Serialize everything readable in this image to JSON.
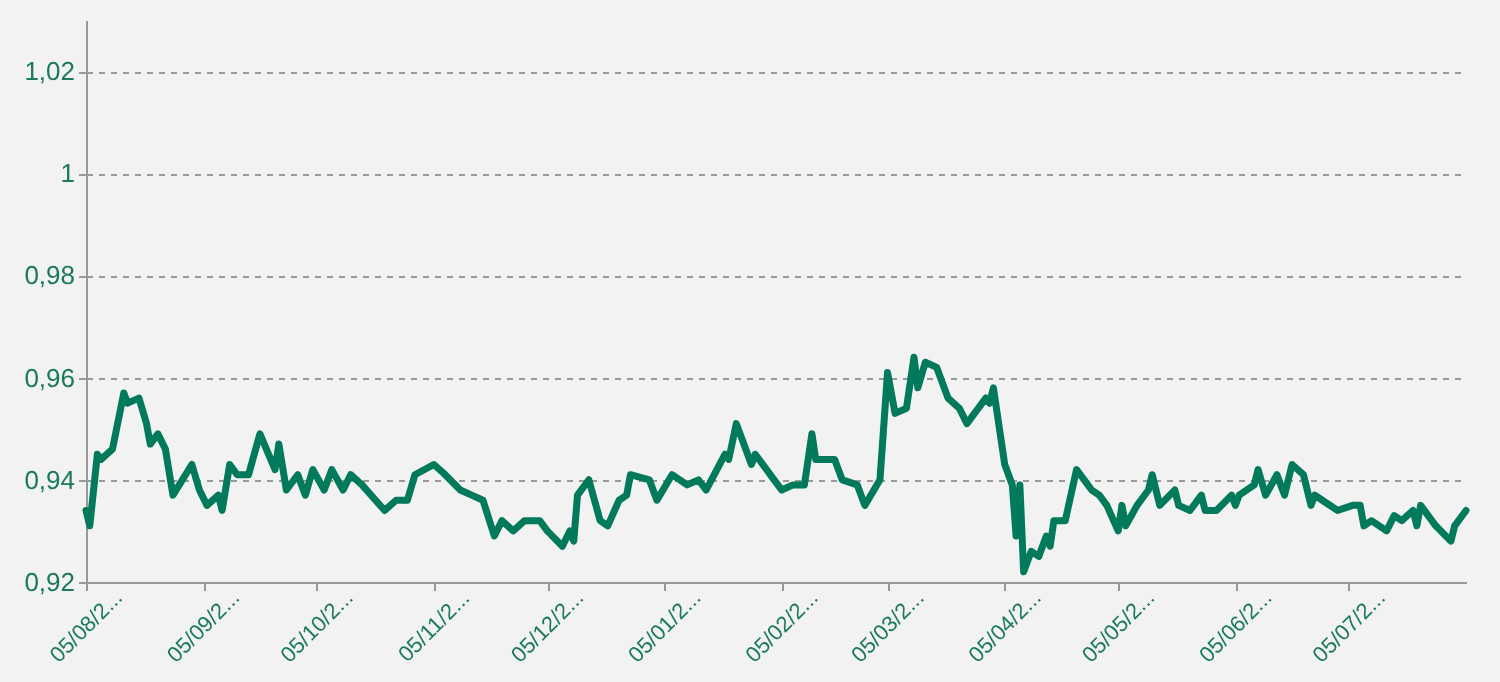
{
  "chart_data": {
    "type": "line",
    "categories": [
      "05/08/2...",
      null,
      null,
      null,
      null,
      null,
      null,
      null,
      null,
      null,
      null,
      null,
      null,
      null,
      null,
      null,
      null,
      null,
      null,
      null,
      null,
      null,
      null,
      null,
      null,
      null,
      null,
      null,
      null,
      null,
      null,
      "05/09/2...",
      null,
      null,
      null,
      null,
      null,
      null,
      null,
      null,
      null,
      null,
      null,
      null,
      null,
      null,
      null,
      null,
      null,
      null,
      null,
      null,
      null,
      null,
      null,
      null,
      null,
      null,
      null,
      null,
      null,
      "05/10/2...",
      null,
      null,
      null,
      null,
      null,
      null,
      null,
      null,
      null,
      null,
      null,
      null,
      null,
      null,
      null,
      null,
      null,
      null,
      null,
      null,
      null,
      null,
      null,
      null,
      null,
      null,
      null,
      null,
      null,
      null,
      "05/11/2...",
      null,
      null,
      null,
      null,
      null,
      null,
      null,
      null,
      null,
      null,
      null,
      null,
      null,
      null,
      null,
      null,
      null,
      null,
      null,
      null,
      null,
      null,
      null,
      null,
      null,
      null,
      null,
      null,
      null,
      "05/12/2...",
      null,
      null,
      null,
      null,
      null,
      null,
      null,
      null,
      null,
      null,
      null,
      null,
      null,
      null,
      null,
      null,
      null,
      null,
      null,
      null,
      null,
      null,
      null,
      null,
      null,
      null,
      null,
      null,
      null,
      null,
      "05/01/2...",
      null,
      null,
      null,
      null,
      null,
      null,
      null,
      null,
      null,
      null,
      null,
      null,
      null,
      null,
      null,
      null,
      null,
      null,
      null,
      null,
      null,
      null,
      null,
      null,
      null,
      null,
      null,
      null,
      null,
      null,
      "05/02/2...",
      null,
      null,
      null,
      null,
      null,
      null,
      null,
      null,
      null,
      null,
      null,
      null,
      null,
      null,
      null,
      null,
      null,
      null,
      null,
      null,
      null,
      null,
      null,
      null,
      null,
      null,
      null,
      "05/03/2...",
      null,
      null,
      null,
      null,
      null,
      null,
      null,
      null,
      null,
      null,
      null,
      null,
      null,
      null,
      null,
      null,
      null,
      null,
      null,
      null,
      null,
      null,
      null,
      null,
      null,
      null,
      null,
      null,
      null,
      null,
      "05/04/2...",
      null,
      null,
      null,
      null,
      null,
      null,
      null,
      null,
      null,
      null,
      null,
      null,
      null,
      null,
      null,
      null,
      null,
      null,
      null,
      null,
      null,
      null,
      null,
      null,
      null,
      null,
      null,
      null,
      null,
      "05/05/2...",
      null,
      null,
      null,
      null,
      null,
      null,
      null,
      null,
      null,
      null,
      null,
      null,
      null,
      null,
      null,
      null,
      null,
      null,
      null,
      null,
      null,
      null,
      null,
      null,
      null,
      null,
      null,
      null,
      null,
      null,
      "05/06/2...",
      null,
      null,
      null,
      null,
      null,
      null,
      null,
      null,
      null,
      null,
      null,
      null,
      null,
      null,
      null,
      null,
      null,
      null,
      null,
      null,
      null,
      null,
      null,
      null,
      null,
      null,
      null,
      null,
      null,
      "05/07/2...",
      null,
      null,
      null,
      null,
      null,
      null,
      null,
      null,
      null,
      null,
      null,
      null,
      null,
      null,
      null,
      null,
      null,
      null,
      null,
      null,
      null,
      null,
      null,
      null,
      null,
      null,
      null,
      null,
      null,
      null,
      null
    ],
    "series": [
      {
        "color": "#007a5a",
        "values": [
          0.934,
          0.931,
          null,
          0.945,
          0.944,
          null,
          null,
          0.946,
          null,
          null,
          0.957,
          0.955,
          null,
          null,
          0.956,
          null,
          0.951,
          0.947,
          null,
          0.949,
          null,
          0.946,
          null,
          0.937,
          null,
          null,
          null,
          null,
          0.943,
          null,
          0.938,
          null,
          0.935,
          null,
          null,
          0.937,
          0.934,
          null,
          0.943,
          null,
          0.941,
          null,
          null,
          0.941,
          null,
          null,
          0.949,
          null,
          null,
          null,
          0.942,
          0.947,
          null,
          0.938,
          null,
          null,
          0.941,
          null,
          0.937,
          null,
          0.942,
          null,
          null,
          0.938,
          null,
          0.942,
          null,
          null,
          0.938,
          null,
          0.941,
          null,
          null,
          0.939,
          null,
          null,
          null,
          null,
          null,
          0.934,
          null,
          null,
          0.936,
          null,
          null,
          0.936,
          null,
          0.941,
          null,
          null,
          null,
          null,
          0.943,
          null,
          null,
          0.941,
          null,
          null,
          null,
          0.938,
          null,
          null,
          0.937,
          null,
          null,
          0.936,
          null,
          null,
          0.929,
          null,
          0.932,
          null,
          null,
          0.93,
          null,
          null,
          0.932,
          null,
          null,
          null,
          0.932,
          null,
          0.93,
          null,
          null,
          null,
          0.927,
          null,
          0.93,
          0.928,
          0.937,
          null,
          null,
          0.94,
          null,
          null,
          0.932,
          null,
          0.931,
          null,
          null,
          0.936,
          null,
          0.937,
          0.941,
          null,
          null,
          null,
          null,
          0.94,
          null,
          0.936,
          null,
          null,
          null,
          0.941,
          null,
          null,
          null,
          0.939,
          null,
          null,
          0.94,
          null,
          0.938,
          null,
          null,
          null,
          null,
          0.945,
          0.944,
          null,
          0.951,
          null,
          null,
          null,
          0.943,
          0.945,
          null,
          null,
          null,
          null,
          0.94,
          null,
          0.938,
          null,
          null,
          0.939,
          null,
          null,
          0.939,
          null,
          0.949,
          0.944,
          null,
          null,
          null,
          null,
          0.944,
          null,
          0.94,
          null,
          null,
          null,
          0.939,
          null,
          0.935,
          null,
          null,
          null,
          0.94,
          null,
          0.961,
          null,
          0.953,
          null,
          null,
          0.954,
          null,
          0.964,
          0.958,
          null,
          0.963,
          null,
          null,
          0.962,
          null,
          null,
          0.956,
          null,
          null,
          0.954,
          null,
          0.951,
          null,
          0.953,
          null,
          null,
          0.956,
          0.955,
          0.958,
          null,
          null,
          0.943,
          null,
          0.939,
          0.929,
          0.939,
          0.922,
          null,
          0.926,
          null,
          0.925,
          null,
          0.929,
          0.927,
          0.932,
          null,
          null,
          0.932,
          null,
          null,
          0.942,
          null,
          null,
          null,
          0.938,
          null,
          0.937,
          null,
          0.935,
          null,
          null,
          0.93,
          0.935,
          0.931,
          null,
          null,
          0.935,
          null,
          null,
          0.938,
          0.941,
          null,
          0.935,
          null,
          null,
          null,
          0.938,
          0.935,
          null,
          null,
          0.934,
          null,
          null,
          0.937,
          0.934,
          null,
          null,
          0.934,
          null,
          null,
          null,
          0.937,
          0.935,
          0.937,
          null,
          null,
          null,
          0.939,
          0.942,
          null,
          0.937,
          null,
          null,
          0.941,
          null,
          0.937,
          null,
          0.943,
          null,
          null,
          0.941,
          null,
          0.935,
          0.937,
          null,
          0.936,
          null,
          null,
          null,
          0.934,
          null,
          null,
          null,
          0.935,
          null,
          0.935,
          0.931,
          null,
          0.932,
          null,
          null,
          null,
          0.93,
          null,
          0.933,
          null,
          0.932,
          null,
          null,
          0.934,
          0.931,
          0.935,
          null,
          null,
          null,
          0.931,
          null,
          null,
          null,
          0.928,
          0.931,
          null,
          null,
          0.934
        ]
      }
    ],
    "ylim": [
      0.92,
      1.03
    ],
    "yticks": [
      {
        "value": 0.92,
        "label": "0,92"
      },
      {
        "value": 0.94,
        "label": "0,94"
      },
      {
        "value": 0.96,
        "label": "0,96"
      },
      {
        "value": 0.98,
        "label": "0,98"
      },
      {
        "value": 1,
        "label": "1"
      },
      {
        "value": 1.02,
        "label": "1,02"
      }
    ],
    "grid": "y",
    "marker": "none",
    "line_style": "solid"
  }
}
